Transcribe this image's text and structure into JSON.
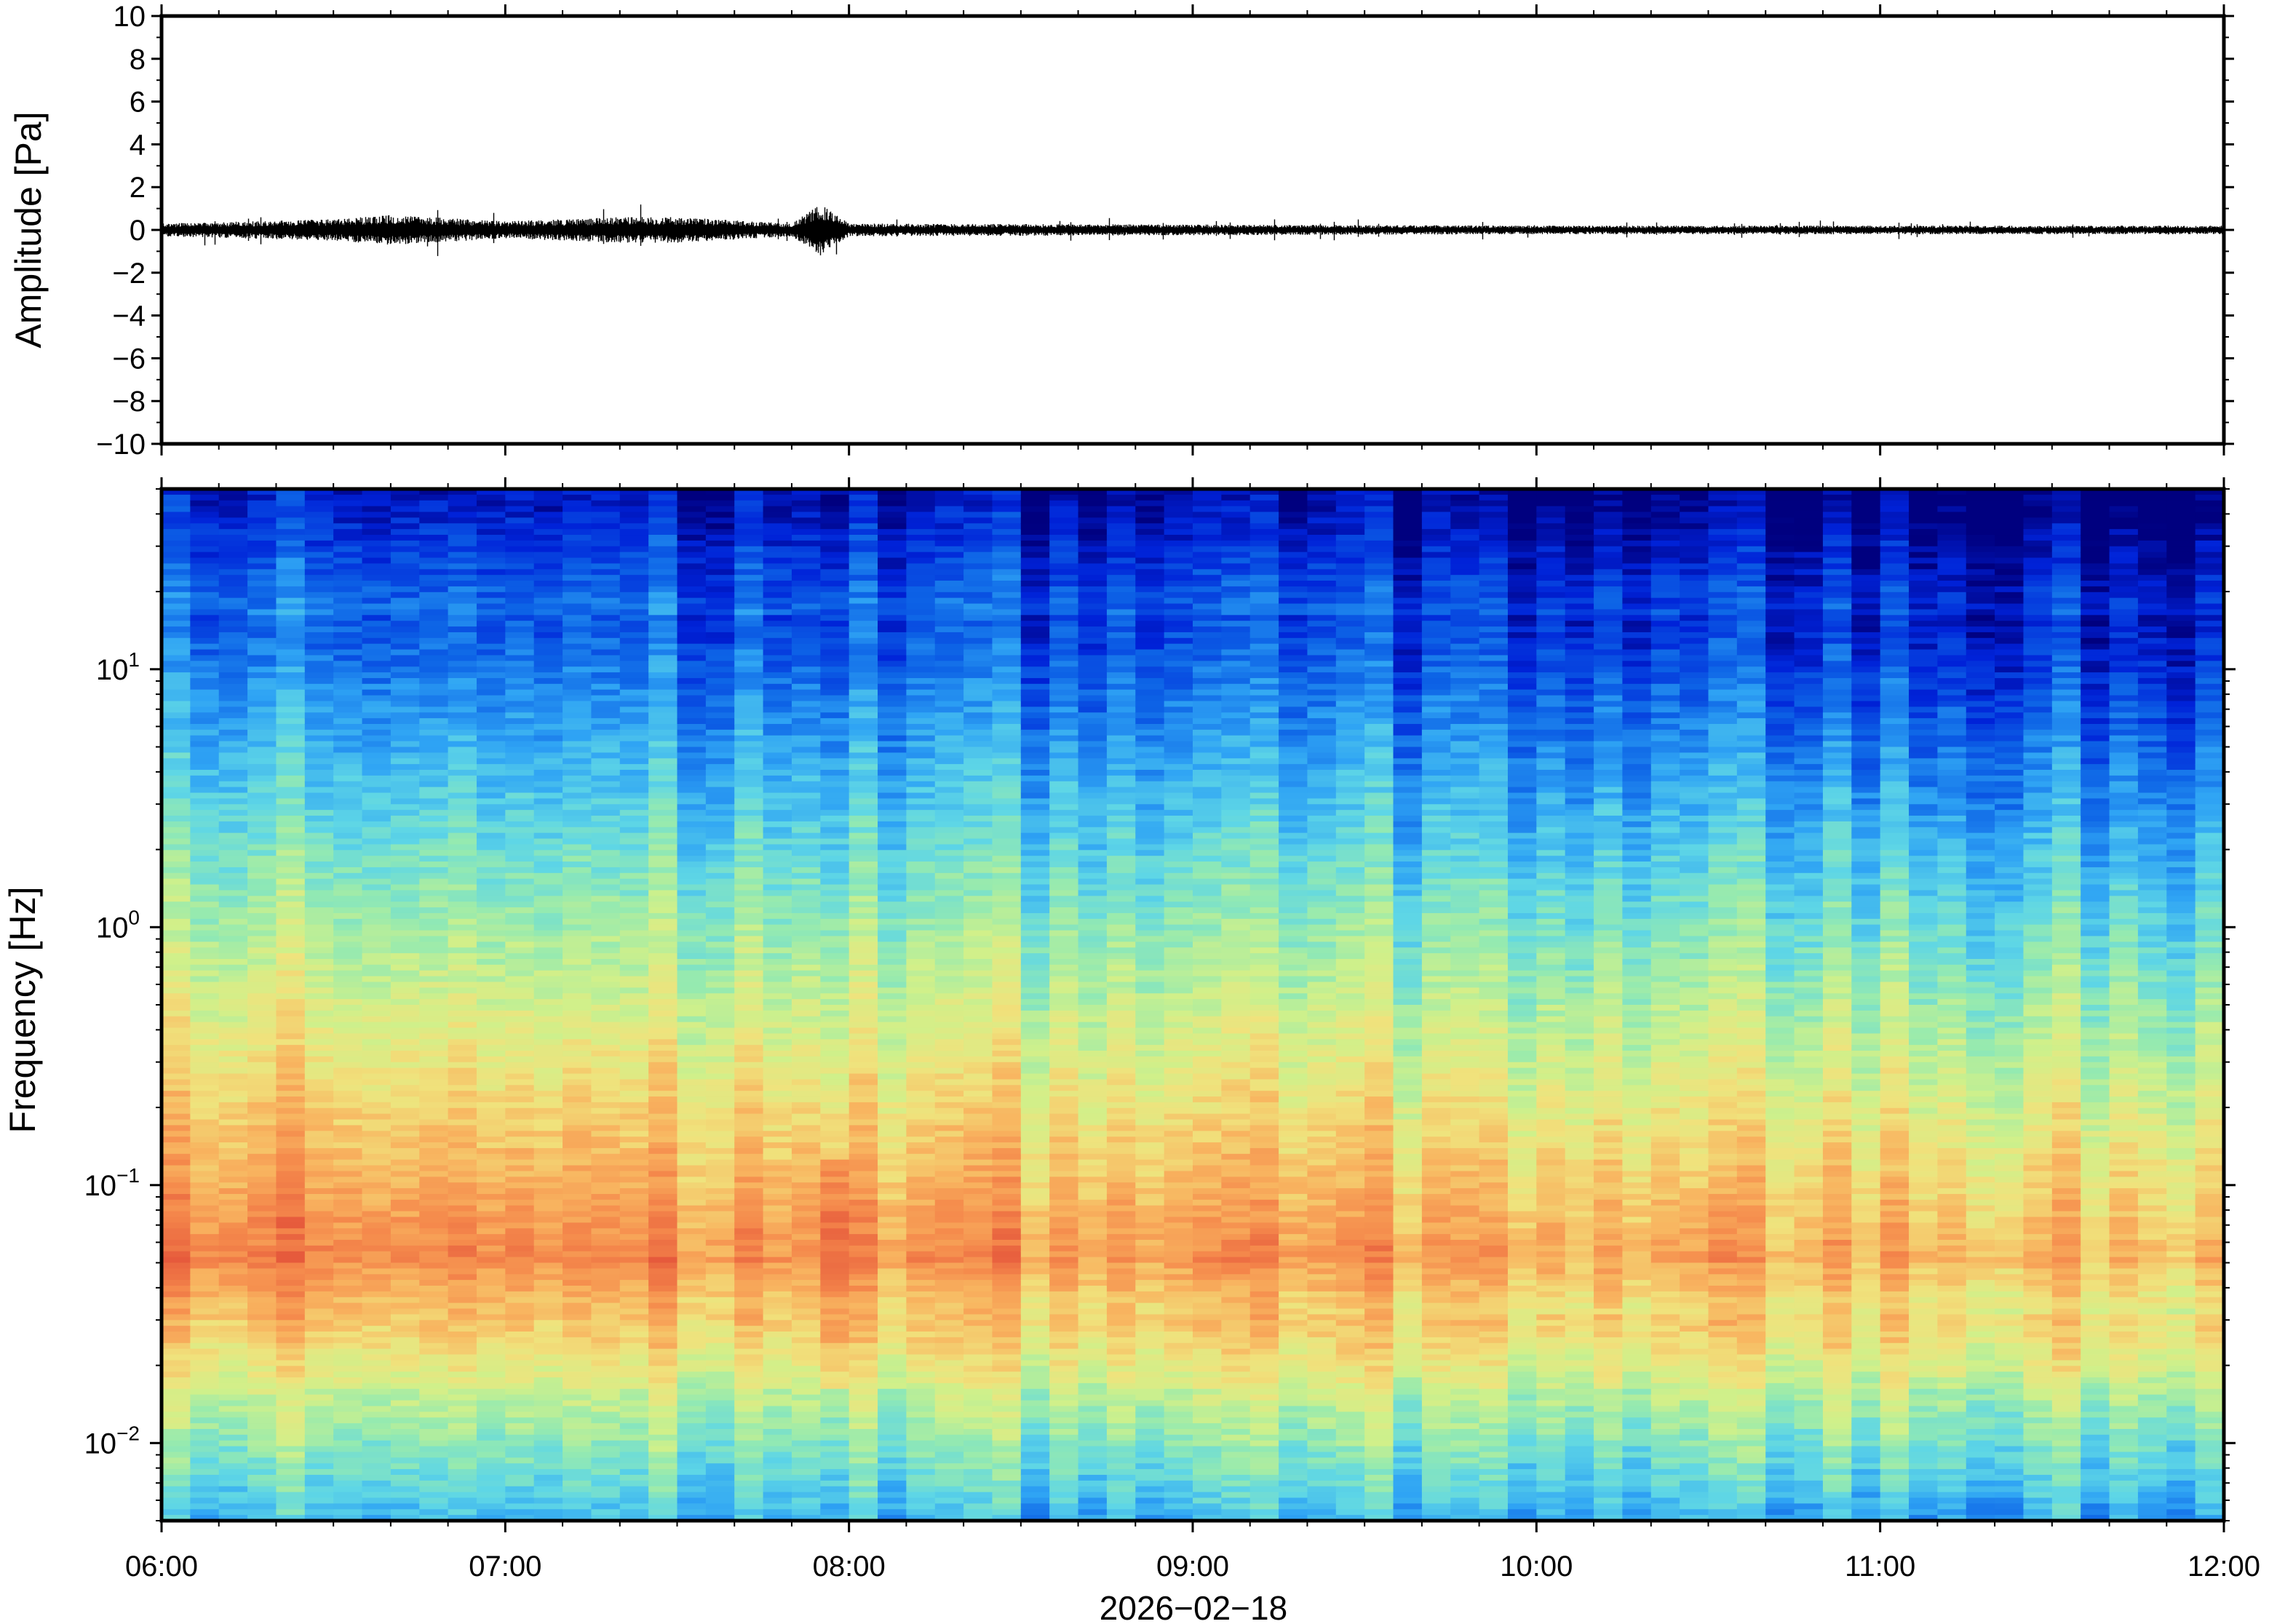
{
  "chart_data": [
    {
      "type": "line",
      "ylabel": "Amplitude [Pa]",
      "ylim": [
        -10,
        10
      ],
      "y_ticks": [
        "10",
        "8",
        "6",
        "4",
        "2",
        "0",
        "−2",
        "−4",
        "−6",
        "−8",
        "−10"
      ],
      "x_range": [
        "06:00",
        "12:00"
      ],
      "series": [
        {
          "color": "#000000",
          "envelope_samples": [
            {
              "time": "06:00",
              "amplitude": 0.3
            },
            {
              "time": "06:30",
              "amplitude": 0.5
            },
            {
              "time": "06:40",
              "amplitude": 0.7
            },
            {
              "time": "07:00",
              "amplitude": 0.4
            },
            {
              "time": "07:20",
              "amplitude": 0.6
            },
            {
              "time": "07:30",
              "amplitude": 0.6
            },
            {
              "time": "07:50",
              "amplitude": 0.3
            },
            {
              "time": "07:55",
              "amplitude": 1.2
            },
            {
              "time": "08:00",
              "amplitude": 0.3
            },
            {
              "time": "09:00",
              "amplitude": 0.25
            },
            {
              "time": "10:00",
              "amplitude": 0.2
            },
            {
              "time": "11:00",
              "amplitude": 0.2
            },
            {
              "time": "12:00",
              "amplitude": 0.2
            }
          ]
        }
      ]
    },
    {
      "type": "heatmap",
      "ylabel": "Frequency [Hz]",
      "xlabel": "2026−02−18",
      "y_scale": "log",
      "ylim": [
        0.005,
        50
      ],
      "y_ticks": [
        {
          "base": "10",
          "exp": "1",
          "value": 10
        },
        {
          "base": "10",
          "exp": "0",
          "value": 1
        },
        {
          "base": "10",
          "exp": "−1",
          "value": 0.1
        },
        {
          "base": "10",
          "exp": "−2",
          "value": 0.01
        }
      ],
      "x_ticks": [
        "06:00",
        "07:00",
        "08:00",
        "09:00",
        "10:00",
        "11:00",
        "12:00"
      ],
      "colormap": [
        "#00007f",
        "#0022d8",
        "#0d63e6",
        "#2fa4f4",
        "#5ed6e6",
        "#95eab0",
        "#d0f08a",
        "#f0e27c",
        "#f8b560",
        "#f58a4c",
        "#e65a3c"
      ],
      "time_columns": 72,
      "frequency_rows": 180
    }
  ]
}
